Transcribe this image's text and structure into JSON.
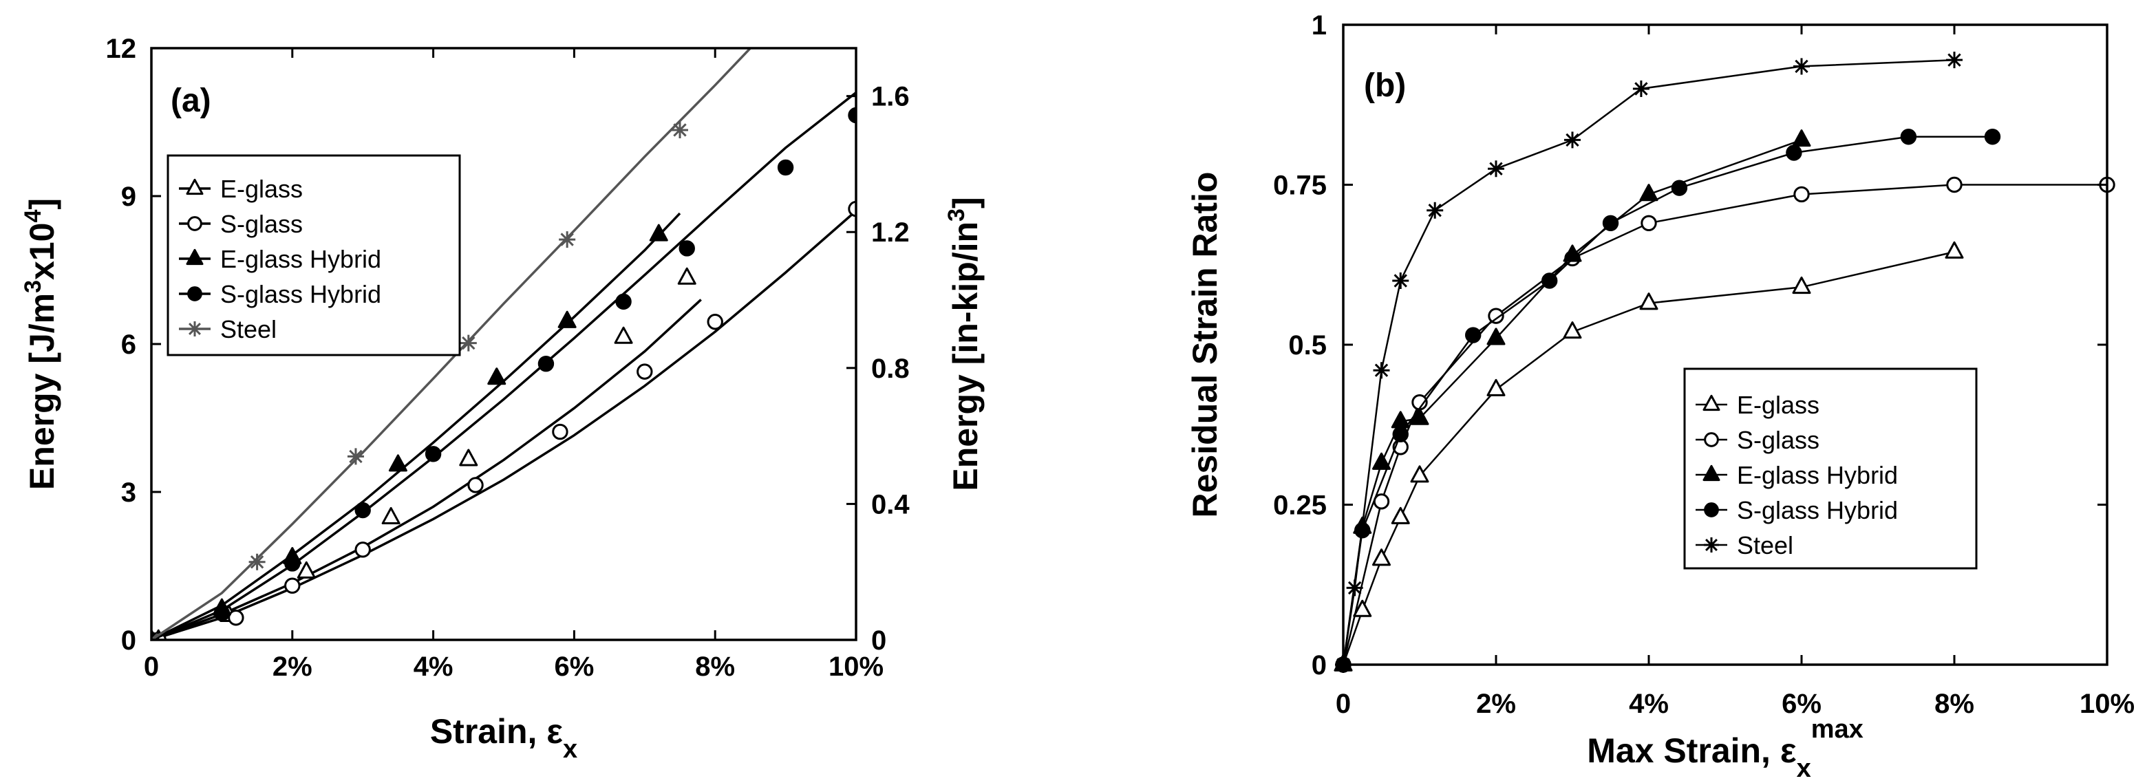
{
  "chart_data": [
    {
      "type": "line",
      "panel": "(a)",
      "xlabel": "Strain, ε",
      "xlabel_sub": "x",
      "ylabel_prefix": "Energy [J/m",
      "ylabel_sup1": "3",
      "ylabel_mid": "x10",
      "ylabel_sup2": "4",
      "ylabel_suffix": "]",
      "y2label_prefix": "Energy [in-kip/in",
      "y2label_sup": "3",
      "y2label_suffix": "]",
      "xlim": [
        0,
        10
      ],
      "ylim": [
        0,
        12
      ],
      "y2lim": [
        0,
        1.741
      ],
      "x_ticks": [
        0,
        2,
        4,
        6,
        8,
        10
      ],
      "x_tick_labels": [
        "0",
        "2%",
        "4%",
        "6%",
        "8%",
        "10%"
      ],
      "y_ticks": [
        0,
        3,
        6,
        9,
        12
      ],
      "y_tick_labels": [
        "0",
        "3",
        "6",
        "9",
        "12"
      ],
      "y2_ticks": [
        0,
        0.4,
        0.8,
        1.2,
        1.6
      ],
      "y2_tick_labels": [
        "0",
        "0.4",
        "0.8",
        "1.2",
        "1.6"
      ],
      "legend_position": "upper-left",
      "series": [
        {
          "name": "E-glass",
          "marker": "triangle-open",
          "color": "#000000",
          "curve": [
            [
              0,
              0
            ],
            [
              1,
              0.52
            ],
            [
              2,
              1.15
            ],
            [
              3,
              1.88
            ],
            [
              4,
              2.7
            ],
            [
              5,
              3.65
            ],
            [
              6,
              4.7
            ],
            [
              7,
              5.85
            ],
            [
              7.8,
              6.9
            ]
          ],
          "points": [
            [
              0.1,
              0
            ],
            [
              1.1,
              0.5
            ],
            [
              2.2,
              1.38
            ],
            [
              3.4,
              2.48
            ],
            [
              4.5,
              3.66
            ],
            [
              6.7,
              6.14
            ],
            [
              7.6,
              7.34
            ]
          ]
        },
        {
          "name": "S-glass",
          "marker": "circle-open",
          "color": "#000000",
          "curve": [
            [
              0,
              0
            ],
            [
              1,
              0.45
            ],
            [
              2,
              1.05
            ],
            [
              3,
              1.72
            ],
            [
              4,
              2.45
            ],
            [
              5,
              3.25
            ],
            [
              6,
              4.15
            ],
            [
              7,
              5.15
            ],
            [
              8,
              6.25
            ],
            [
              9,
              7.45
            ],
            [
              10,
              8.7
            ]
          ],
          "points": [
            [
              0.1,
              0
            ],
            [
              1.2,
              0.45
            ],
            [
              2,
              1.1
            ],
            [
              3,
              1.83
            ],
            [
              4.6,
              3.14
            ],
            [
              5.8,
              4.22
            ],
            [
              7,
              5.44
            ],
            [
              8,
              6.45
            ],
            [
              10,
              8.74
            ]
          ]
        },
        {
          "name": "E-glass Hybrid",
          "marker": "triangle-filled",
          "color": "#000000",
          "curve": [
            [
              0,
              0
            ],
            [
              1,
              0.7
            ],
            [
              2,
              1.72
            ],
            [
              3,
              2.8
            ],
            [
              4,
              4.0
            ],
            [
              5,
              5.25
            ],
            [
              6,
              6.55
            ],
            [
              7,
              7.9
            ],
            [
              7.5,
              8.65
            ]
          ],
          "points": [
            [
              0,
              0
            ],
            [
              1,
              0.63
            ],
            [
              2,
              1.67
            ],
            [
              3.5,
              3.55
            ],
            [
              4.9,
              5.31
            ],
            [
              5.9,
              6.46
            ],
            [
              7.2,
              8.22
            ]
          ]
        },
        {
          "name": "S-glass Hybrid",
          "marker": "circle-filled",
          "color": "#000000",
          "curve": [
            [
              0,
              0
            ],
            [
              1,
              0.6
            ],
            [
              2,
              1.52
            ],
            [
              3,
              2.58
            ],
            [
              4,
              3.7
            ],
            [
              5,
              4.88
            ],
            [
              6,
              6.12
            ],
            [
              7,
              7.4
            ],
            [
              8,
              8.7
            ],
            [
              9,
              9.98
            ],
            [
              10,
              11.1
            ]
          ],
          "points": [
            [
              0,
              0
            ],
            [
              1,
              0.54
            ],
            [
              2,
              1.55
            ],
            [
              3,
              2.63
            ],
            [
              4,
              3.77
            ],
            [
              5.6,
              5.6
            ],
            [
              6.7,
              6.86
            ],
            [
              7.6,
              7.94
            ],
            [
              9,
              9.58
            ],
            [
              10,
              10.64
            ]
          ]
        },
        {
          "name": "Steel",
          "marker": "asterisk",
          "color": "#555555",
          "curve": [
            [
              0,
              0
            ],
            [
              1,
              0.95
            ],
            [
              2,
              2.35
            ],
            [
              3,
              3.8
            ],
            [
              4,
              5.3
            ],
            [
              5,
              6.82
            ],
            [
              6,
              8.3
            ],
            [
              7,
              9.8
            ],
            [
              8,
              11.25
            ],
            [
              8.5,
              12.0
            ]
          ],
          "points": [
            [
              0,
              0
            ],
            [
              1.5,
              1.58
            ],
            [
              2.9,
              3.72
            ],
            [
              4.5,
              6.02
            ],
            [
              5.9,
              8.12
            ],
            [
              7.5,
              10.34
            ]
          ]
        }
      ]
    },
    {
      "type": "line",
      "panel": "(b)",
      "xlabel": "Max Strain, ε",
      "xlabel_sub": "x",
      "xlabel_sup": "max",
      "ylabel": "Residual Strain Ratio",
      "xlim": [
        0,
        10
      ],
      "ylim": [
        0,
        1
      ],
      "x_ticks": [
        0,
        2,
        4,
        6,
        8,
        10
      ],
      "x_tick_labels": [
        "0",
        "2%",
        "4%",
        "6%",
        "8%",
        "10%"
      ],
      "y_ticks": [
        0,
        0.25,
        0.5,
        0.75,
        1
      ],
      "y_tick_labels": [
        "0",
        "0.25",
        "0.5",
        "0.75",
        "1"
      ],
      "legend_position": "lower-right",
      "series": [
        {
          "name": "E-glass",
          "marker": "triangle-open",
          "color": "#000000",
          "points": [
            [
              0,
              0
            ],
            [
              0.25,
              0.085
            ],
            [
              0.5,
              0.165
            ],
            [
              0.75,
              0.23
            ],
            [
              1,
              0.295
            ],
            [
              2,
              0.43
            ],
            [
              3,
              0.52
            ],
            [
              4,
              0.565
            ],
            [
              6,
              0.59
            ],
            [
              8,
              0.645
            ]
          ]
        },
        {
          "name": "S-glass",
          "marker": "circle-open",
          "color": "#000000",
          "points": [
            [
              0,
              0
            ],
            [
              0.5,
              0.255
            ],
            [
              0.75,
              0.34
            ],
            [
              1,
              0.41
            ],
            [
              2,
              0.545
            ],
            [
              3,
              0.635
            ],
            [
              4,
              0.69
            ],
            [
              6,
              0.735
            ],
            [
              8,
              0.75
            ],
            [
              10,
              0.75
            ]
          ]
        },
        {
          "name": "E-glass Hybrid",
          "marker": "triangle-filled",
          "color": "#000000",
          "points": [
            [
              0,
              0
            ],
            [
              0.25,
              0.215
            ],
            [
              0.5,
              0.315
            ],
            [
              0.75,
              0.38
            ],
            [
              1,
              0.385
            ],
            [
              2,
              0.51
            ],
            [
              3,
              0.64
            ],
            [
              4,
              0.735
            ],
            [
              6,
              0.82
            ]
          ]
        },
        {
          "name": "S-glass Hybrid",
          "marker": "circle-filled",
          "color": "#000000",
          "points": [
            [
              0,
              0
            ],
            [
              0.25,
              0.21
            ],
            [
              0.75,
              0.36
            ],
            [
              1.7,
              0.515
            ],
            [
              2.7,
              0.6
            ],
            [
              3.5,
              0.69
            ],
            [
              4.4,
              0.745
            ],
            [
              5.9,
              0.8
            ],
            [
              7.4,
              0.825
            ],
            [
              8.5,
              0.825
            ]
          ]
        },
        {
          "name": "Steel",
          "marker": "asterisk",
          "color": "#000000",
          "points": [
            [
              0,
              0
            ],
            [
              0.15,
              0.12
            ],
            [
              0.5,
              0.46
            ],
            [
              0.75,
              0.6
            ],
            [
              1.2,
              0.71
            ],
            [
              2,
              0.775
            ],
            [
              3,
              0.82
            ],
            [
              3.9,
              0.9
            ],
            [
              6,
              0.935
            ],
            [
              8,
              0.945
            ]
          ]
        }
      ]
    }
  ]
}
